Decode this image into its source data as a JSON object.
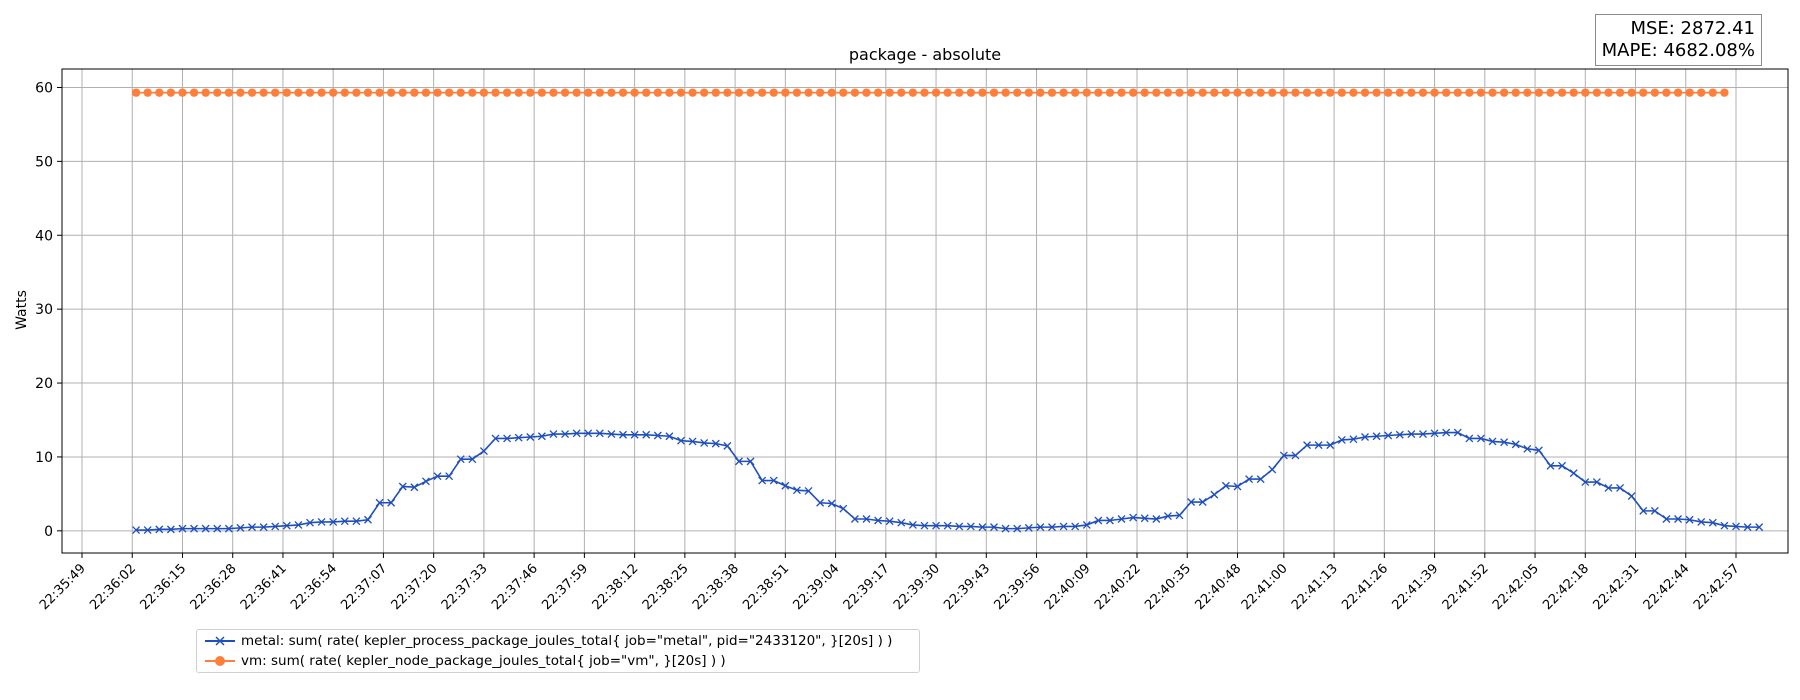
{
  "chart_data": {
    "type": "line",
    "title": "package - absolute",
    "xlabel": "",
    "ylabel": "Watts",
    "ylim": [
      -3,
      62.5
    ],
    "yticks": [
      0,
      10,
      20,
      30,
      40,
      50,
      60
    ],
    "x_tick_labels": [
      "22:35:49",
      "22:36:02",
      "22:36:15",
      "22:36:28",
      "22:36:41",
      "22:36:54",
      "22:37:07",
      "22:37:20",
      "22:37:33",
      "22:37:46",
      "22:37:59",
      "22:38:12",
      "22:38:25",
      "22:38:38",
      "22:38:51",
      "22:39:04",
      "22:39:17",
      "22:39:30",
      "22:39:43",
      "22:39:56",
      "22:40:09",
      "22:40:22",
      "22:40:35",
      "22:40:48",
      "22:41:00",
      "22:41:13",
      "22:41:26",
      "22:41:39",
      "22:41:52",
      "22:42:05",
      "22:42:18",
      "22:42:31",
      "22:42:44",
      "22:42:57"
    ],
    "x_start": "22:36:03",
    "x_step_seconds": 3,
    "grid": true,
    "legend_position": "below-left",
    "series": [
      {
        "name": "metal: sum( rate( kepler_process_package_joules_total{ job=\"metal\", pid=\"2433120\", }[20s] ) )",
        "color": "#1f4fbf",
        "marker": "x",
        "values": [
          0.1,
          0.1,
          0.2,
          0.2,
          0.3,
          0.3,
          0.3,
          0.3,
          0.3,
          0.4,
          0.5,
          0.5,
          0.6,
          0.7,
          0.8,
          1.1,
          1.2,
          1.2,
          1.3,
          1.3,
          1.5,
          3.8,
          3.8,
          6.0,
          5.9,
          6.7,
          7.4,
          7.4,
          9.7,
          9.7,
          10.8,
          12.5,
          12.5,
          12.6,
          12.7,
          12.8,
          13.1,
          13.1,
          13.2,
          13.2,
          13.2,
          13.1,
          13.0,
          13.0,
          13.0,
          12.9,
          12.8,
          12.2,
          12.1,
          11.9,
          11.8,
          11.5,
          9.4,
          9.4,
          6.8,
          6.8,
          6.1,
          5.5,
          5.4,
          3.8,
          3.7,
          3.0,
          1.6,
          1.6,
          1.4,
          1.3,
          1.1,
          0.8,
          0.7,
          0.7,
          0.7,
          0.6,
          0.6,
          0.5,
          0.5,
          0.3,
          0.3,
          0.4,
          0.5,
          0.5,
          0.6,
          0.6,
          0.8,
          1.4,
          1.4,
          1.6,
          1.8,
          1.7,
          1.6,
          2.0,
          2.1,
          3.9,
          3.9,
          4.9,
          6.1,
          6.0,
          7.0,
          7.0,
          8.3,
          10.2,
          10.2,
          11.6,
          11.6,
          11.6,
          12.3,
          12.4,
          12.7,
          12.8,
          12.9,
          13.0,
          13.1,
          13.1,
          13.2,
          13.3,
          13.3,
          12.5,
          12.5,
          12.1,
          12.0,
          11.7,
          11.1,
          10.9,
          8.8,
          8.8,
          7.8,
          6.6,
          6.6,
          5.8,
          5.8,
          4.7,
          2.7,
          2.7,
          1.6,
          1.6,
          1.5,
          1.2,
          1.1,
          0.7,
          0.6,
          0.5,
          0.5
        ]
      },
      {
        "name": "vm: sum( rate( kepler_node_package_joules_total{ job=\"vm\", }[20s] ) )",
        "color": "#ff7f3a",
        "marker": "o",
        "constant_value": 59.3,
        "count": 138
      }
    ]
  },
  "metrics": {
    "mse": "MSE: 2872.41",
    "mape": "MAPE: 4682.08%"
  }
}
